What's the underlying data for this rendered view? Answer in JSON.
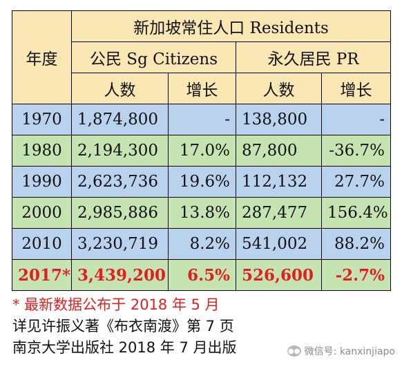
{
  "table": {
    "header": {
      "year": "年度",
      "residents": "新加坡常住人口 Residents",
      "citizens": "公民 Sg Citizens",
      "pr": "永久居民 PR",
      "people": "人数",
      "growth": "增长"
    },
    "rows": [
      {
        "year": "1970",
        "cit": "1,874,800",
        "cit_g": "-",
        "pr": "138,800",
        "pr_g": "-"
      },
      {
        "year": "1980",
        "cit": "2,194,300",
        "cit_g": "17.0%",
        "pr": "87,800",
        "pr_g": "-36.7%"
      },
      {
        "year": "1990",
        "cit": "2,623,736",
        "cit_g": "19.6%",
        "pr": "112,132",
        "pr_g": "27.7%"
      },
      {
        "year": "2000",
        "cit": "2,985,886",
        "cit_g": "13.8%",
        "pr": "287,477",
        "pr_g": "156.4%"
      },
      {
        "year": "2010",
        "cit": "3,230,719",
        "cit_g": "8.2%",
        "pr": "541,002",
        "pr_g": "88.2%"
      },
      {
        "year": "2017*",
        "cit": "3,439,200",
        "cit_g": "6.5%",
        "pr": "526,600",
        "pr_g": "-2.7%"
      }
    ]
  },
  "notes": {
    "line1": "* 最新数据公布于 2018 年 5 月",
    "line2": "详见许振义著《布衣南渡》第 7 页",
    "line3": "南京大学出版社 2018 年 7 月出版"
  },
  "watermark": {
    "icon": "wechat-icon",
    "text": "微信号: kanxinjiapo"
  }
}
